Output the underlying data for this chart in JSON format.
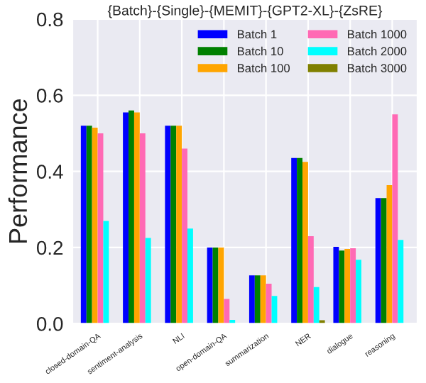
{
  "chart_data": {
    "type": "bar",
    "title": "{Batch}-{Single}-{MEMIT}-{GPT2-XL}-{ZsRE}",
    "ylabel": "Performance",
    "categories": [
      "closed-domain-QA",
      "sentiment-analysis",
      "NLI",
      "open-domain-QA",
      "summarization",
      "NER",
      "dialogue",
      "reasoning"
    ],
    "series": [
      {
        "name": "Batch 1",
        "color": "#0000ff",
        "values": [
          0.52,
          0.555,
          0.52,
          0.2,
          0.127,
          0.435,
          0.202,
          0.33
        ]
      },
      {
        "name": "Batch 10",
        "color": "#008000",
        "values": [
          0.52,
          0.56,
          0.52,
          0.2,
          0.127,
          0.435,
          0.192,
          0.33
        ]
      },
      {
        "name": "Batch 100",
        "color": "#ffa500",
        "values": [
          0.515,
          0.555,
          0.52,
          0.2,
          0.127,
          0.425,
          0.196,
          0.364
        ]
      },
      {
        "name": "Batch 1000",
        "color": "#ff69b4",
        "values": [
          0.5,
          0.5,
          0.46,
          0.065,
          0.105,
          0.23,
          0.198,
          0.55
        ]
      },
      {
        "name": "Batch 2000",
        "color": "#00ffff",
        "values": [
          0.27,
          0.225,
          0.25,
          0.01,
          0.073,
          0.096,
          0.168,
          0.22
        ]
      },
      {
        "name": "Batch 3000",
        "color": "#808000",
        "values": [
          null,
          null,
          null,
          null,
          null,
          0.009,
          null,
          null
        ]
      }
    ],
    "ylim": [
      0,
      0.8
    ],
    "yticks": [
      {
        "value": 0,
        "label": "0.0"
      },
      0.2,
      0.4,
      0.6,
      0.8
    ],
    "grid": true,
    "legend": "top right"
  }
}
